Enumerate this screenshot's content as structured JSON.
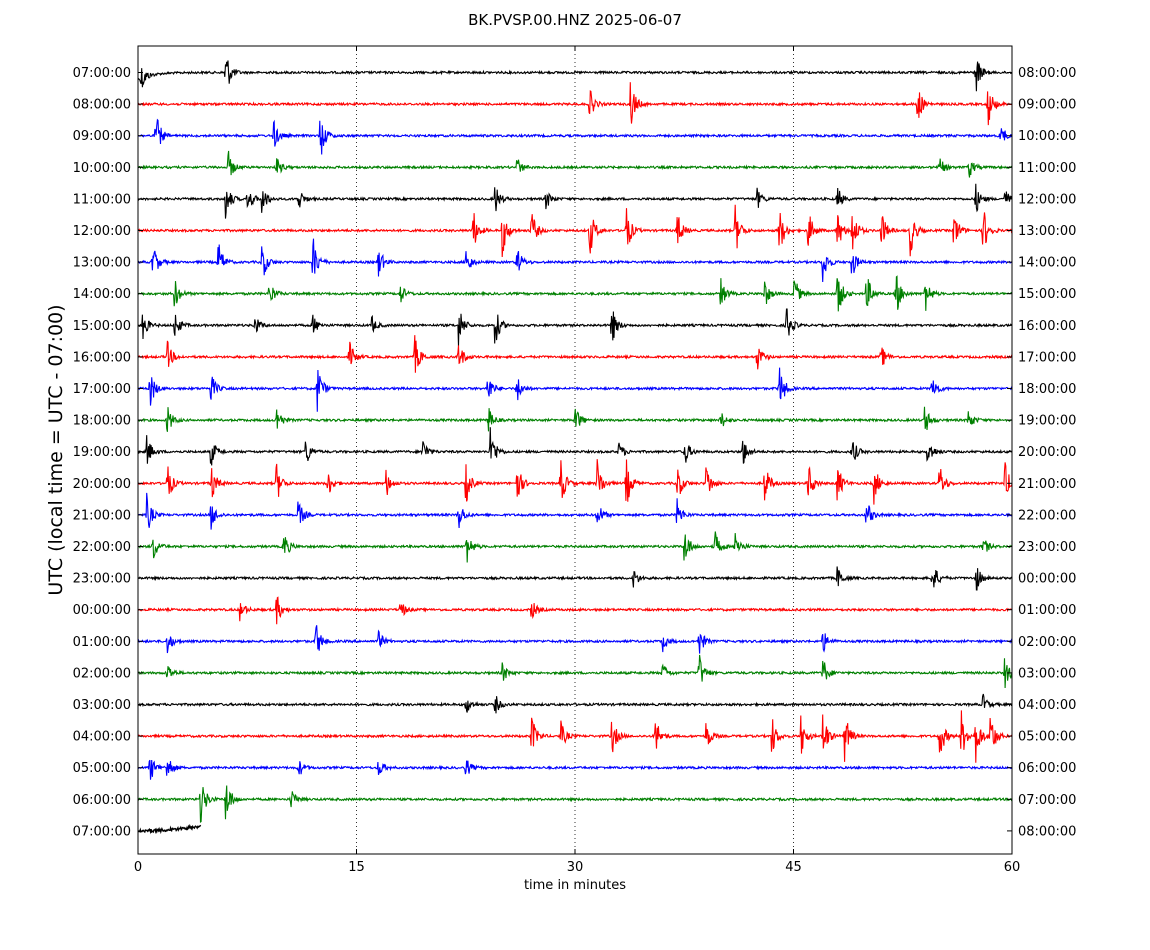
{
  "chart_data": {
    "type": "line",
    "title": "BK.PVSP.00.HNZ 2025-06-07",
    "xlabel": "time in minutes",
    "ylabel": "UTC (local time = UTC - 07:00)",
    "xlim": [
      0,
      60
    ],
    "x_ticks": [
      0,
      15,
      30,
      45,
      60
    ],
    "vertical_grid": "dotted",
    "colors": [
      "#000000",
      "#ff0000",
      "#0000ff",
      "#008000"
    ],
    "left_labels": [
      "07:00:00",
      "08:00:00",
      "09:00:00",
      "10:00:00",
      "11:00:00",
      "12:00:00",
      "13:00:00",
      "14:00:00",
      "15:00:00",
      "16:00:00",
      "17:00:00",
      "18:00:00",
      "19:00:00",
      "20:00:00",
      "21:00:00",
      "22:00:00",
      "23:00:00",
      "00:00:00",
      "01:00:00",
      "02:00:00",
      "03:00:00",
      "04:00:00",
      "05:00:00",
      "06:00:00",
      "07:00:00"
    ],
    "right_labels": [
      "08:00:00",
      "09:00:00",
      "10:00:00",
      "11:00:00",
      "12:00:00",
      "13:00:00",
      "14:00:00",
      "15:00:00",
      "16:00:00",
      "17:00:00",
      "18:00:00",
      "19:00:00",
      "20:00:00",
      "21:00:00",
      "22:00:00",
      "23:00:00",
      "00:00:00",
      "01:00:00",
      "02:00:00",
      "03:00:00",
      "04:00:00",
      "05:00:00",
      "06:00:00",
      "07:00:00",
      "08:00:00"
    ],
    "series": [
      {
        "color_index": 0,
        "events": [
          [
            0.2,
            1.5
          ],
          [
            6,
            2.5
          ],
          [
            57.5,
            2
          ]
        ]
      },
      {
        "color_index": 1,
        "events": [
          [
            31,
            1.5
          ],
          [
            33.8,
            2.5
          ],
          [
            53.5,
            2
          ],
          [
            58.3,
            2.5
          ]
        ]
      },
      {
        "color_index": 2,
        "events": [
          [
            1.2,
            2.5
          ],
          [
            9.3,
            1.5
          ],
          [
            12.5,
            2.5
          ],
          [
            59.2,
            1.2
          ]
        ]
      },
      {
        "color_index": 3,
        "events": [
          [
            6.2,
            1.5
          ],
          [
            9.5,
            1
          ],
          [
            26,
            1
          ],
          [
            55,
            1
          ],
          [
            57,
            1.2
          ]
        ]
      },
      {
        "color_index": 0,
        "events": [
          [
            6,
            2
          ],
          [
            7.5,
            1.5
          ],
          [
            8.5,
            1.5
          ],
          [
            11,
            1.2
          ],
          [
            24.5,
            1.5
          ],
          [
            28,
            1
          ],
          [
            42.5,
            1
          ],
          [
            48,
            1.2
          ],
          [
            57.5,
            1.5
          ],
          [
            59.5,
            1
          ]
        ]
      },
      {
        "color_index": 1,
        "events": [
          [
            23,
            2
          ],
          [
            25,
            2.5
          ],
          [
            27,
            2
          ],
          [
            31,
            2.5
          ],
          [
            33.5,
            2.5
          ],
          [
            37,
            2
          ],
          [
            41,
            2.5
          ],
          [
            44,
            2.5
          ],
          [
            46,
            2
          ],
          [
            48,
            2
          ],
          [
            49,
            2.5
          ],
          [
            51,
            2
          ],
          [
            53,
            2.5
          ],
          [
            56,
            2
          ],
          [
            58,
            2.5
          ]
        ]
      },
      {
        "color_index": 2,
        "events": [
          [
            1,
            2
          ],
          [
            5.5,
            2
          ],
          [
            8.5,
            2
          ],
          [
            12,
            2.5
          ],
          [
            16.5,
            1.5
          ],
          [
            22.5,
            1.5
          ],
          [
            26,
            1.5
          ],
          [
            47,
            2
          ],
          [
            49,
            1.5
          ]
        ]
      },
      {
        "color_index": 3,
        "events": [
          [
            2.5,
            1.5
          ],
          [
            9,
            1.5
          ],
          [
            18,
            1
          ],
          [
            40,
            1.5
          ],
          [
            43,
            1.5
          ],
          [
            45,
            2
          ],
          [
            48,
            2.5
          ],
          [
            50,
            2
          ],
          [
            52,
            2.5
          ],
          [
            54,
            2
          ]
        ]
      },
      {
        "color_index": 0,
        "events": [
          [
            0.3,
            1.5
          ],
          [
            2.5,
            1.5
          ],
          [
            8,
            1
          ],
          [
            12,
            1
          ],
          [
            16,
            1
          ],
          [
            22,
            2
          ],
          [
            24.5,
            2
          ],
          [
            32.5,
            2
          ],
          [
            44.5,
            2
          ]
        ]
      },
      {
        "color_index": 1,
        "events": [
          [
            2,
            1.5
          ],
          [
            14.5,
            1.5
          ],
          [
            19,
            2
          ],
          [
            22,
            1.5
          ],
          [
            42.5,
            1.5
          ],
          [
            51,
            1.2
          ]
        ]
      },
      {
        "color_index": 2,
        "events": [
          [
            0.8,
            2
          ],
          [
            5,
            1.5
          ],
          [
            12.3,
            2.5
          ],
          [
            24,
            1.5
          ],
          [
            26,
            1.5
          ],
          [
            44,
            2.5
          ],
          [
            54.5,
            1.5
          ]
        ]
      },
      {
        "color_index": 3,
        "events": [
          [
            2,
            1.5
          ],
          [
            9.5,
            1.5
          ],
          [
            24,
            1.5
          ],
          [
            30,
            1.5
          ],
          [
            40,
            1
          ],
          [
            54,
            1.5
          ],
          [
            57,
            1
          ]
        ]
      },
      {
        "color_index": 0,
        "events": [
          [
            0.6,
            1.5
          ],
          [
            5,
            1.5
          ],
          [
            11.5,
            1.5
          ],
          [
            19.5,
            1.5
          ],
          [
            24.2,
            2.5
          ],
          [
            33,
            1
          ],
          [
            37.5,
            1.5
          ],
          [
            41.5,
            1.5
          ],
          [
            49,
            1.5
          ],
          [
            54.2,
            1.5
          ]
        ]
      },
      {
        "color_index": 1,
        "events": [
          [
            2,
            2
          ],
          [
            5,
            2
          ],
          [
            9.5,
            2
          ],
          [
            13,
            1.5
          ],
          [
            17,
            1.5
          ],
          [
            22.5,
            2
          ],
          [
            26,
            2
          ],
          [
            29,
            2.5
          ],
          [
            31.5,
            2.5
          ],
          [
            33.5,
            2.5
          ],
          [
            37,
            2
          ],
          [
            39,
            2
          ],
          [
            43,
            2
          ],
          [
            46,
            2
          ],
          [
            48,
            2
          ],
          [
            50.5,
            2
          ],
          [
            55,
            2
          ],
          [
            59.5,
            2
          ]
        ]
      },
      {
        "color_index": 2,
        "events": [
          [
            0.6,
            2
          ],
          [
            5,
            1.5
          ],
          [
            11,
            1.5
          ],
          [
            22,
            1.5
          ],
          [
            31.5,
            1.5
          ],
          [
            37,
            1.5
          ],
          [
            50,
            1.5
          ]
        ]
      },
      {
        "color_index": 3,
        "events": [
          [
            1,
            1.5
          ],
          [
            10,
            1.5
          ],
          [
            22.5,
            2
          ],
          [
            37.5,
            2
          ],
          [
            39.5,
            2
          ],
          [
            41,
            1.5
          ],
          [
            58,
            1
          ]
        ]
      },
      {
        "color_index": 0,
        "events": [
          [
            34,
            1
          ],
          [
            48,
            1.2
          ],
          [
            54.5,
            2
          ],
          [
            57.5,
            1.5
          ]
        ]
      },
      {
        "color_index": 1,
        "events": [
          [
            7,
            1
          ],
          [
            9.5,
            1.5
          ],
          [
            18,
            1
          ],
          [
            27,
            1
          ]
        ]
      },
      {
        "color_index": 2,
        "events": [
          [
            2,
            1.2
          ],
          [
            12.2,
            2
          ],
          [
            16.5,
            1
          ],
          [
            36,
            1
          ],
          [
            38.5,
            1.5
          ],
          [
            47,
            1.2
          ]
        ]
      },
      {
        "color_index": 3,
        "events": [
          [
            2,
            1
          ],
          [
            25,
            1
          ],
          [
            36,
            1
          ],
          [
            38.5,
            2
          ],
          [
            47,
            1.5
          ],
          [
            59.5,
            1.5
          ]
        ]
      },
      {
        "color_index": 0,
        "events": [
          [
            22.5,
            1
          ],
          [
            24.5,
            1
          ],
          [
            58,
            1
          ]
        ]
      },
      {
        "color_index": 1,
        "events": [
          [
            27,
            2
          ],
          [
            29,
            1.5
          ],
          [
            32.5,
            2
          ],
          [
            35.5,
            2
          ],
          [
            39,
            1.5
          ],
          [
            43.5,
            2
          ],
          [
            45.5,
            2
          ],
          [
            47,
            2.5
          ],
          [
            48.5,
            2.5
          ],
          [
            55,
            2.5
          ],
          [
            56.5,
            2.5
          ],
          [
            57.5,
            2.5
          ],
          [
            58.5,
            2.5
          ]
        ]
      },
      {
        "color_index": 2,
        "events": [
          [
            0.8,
            1.5
          ],
          [
            2,
            1.5
          ],
          [
            11,
            1
          ],
          [
            16.5,
            1
          ],
          [
            22.5,
            1
          ]
        ]
      },
      {
        "color_index": 3,
        "events": [
          [
            4.3,
            2.5
          ],
          [
            6,
            2.5
          ],
          [
            10.5,
            1
          ]
        ]
      }
    ]
  }
}
